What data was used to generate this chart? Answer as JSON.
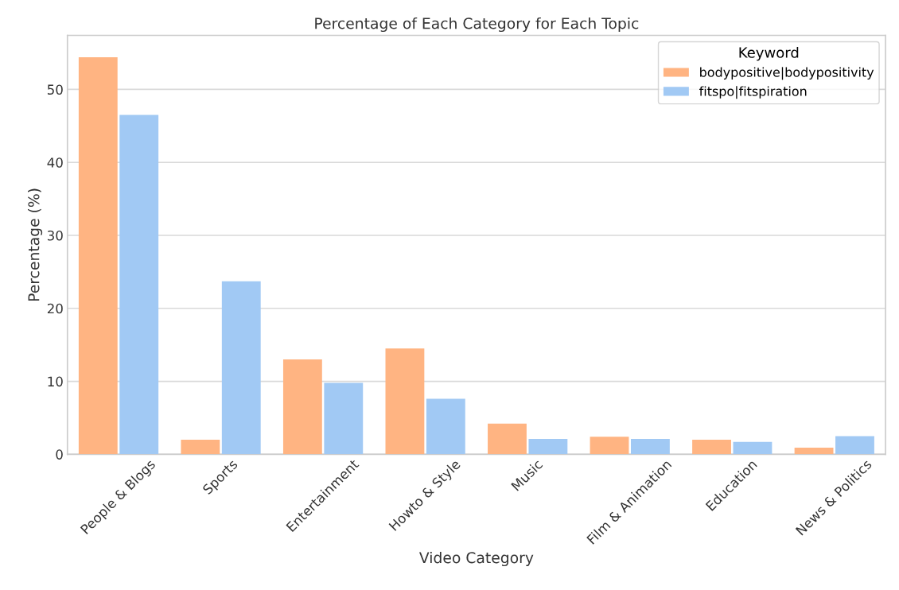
{
  "chart_data": {
    "type": "bar",
    "title": "Percentage of Each Category for Each Topic",
    "xlabel": "Video Category",
    "ylabel": "Percentage (%)",
    "legend_title": "Keyword",
    "categories": [
      "People & Blogs",
      "Sports",
      "Entertainment",
      "Howto & Style",
      "Music",
      "Film & Animation",
      "Education",
      "News & Politics"
    ],
    "series": [
      {
        "name": "bodypositive|bodypositivity",
        "color": "#ffb482",
        "values": [
          54.4,
          2.0,
          13.0,
          14.5,
          4.2,
          2.4,
          2.0,
          0.9
        ]
      },
      {
        "name": "fitspo|fitspiration",
        "color": "#a1c9f4",
        "values": [
          46.5,
          23.7,
          9.8,
          7.6,
          2.1,
          2.1,
          1.7,
          2.5
        ]
      }
    ],
    "ylim": [
      0,
      57.4
    ],
    "yticks": [
      0,
      10,
      20,
      30,
      40,
      50
    ],
    "grid": "y",
    "legend": "top right"
  }
}
